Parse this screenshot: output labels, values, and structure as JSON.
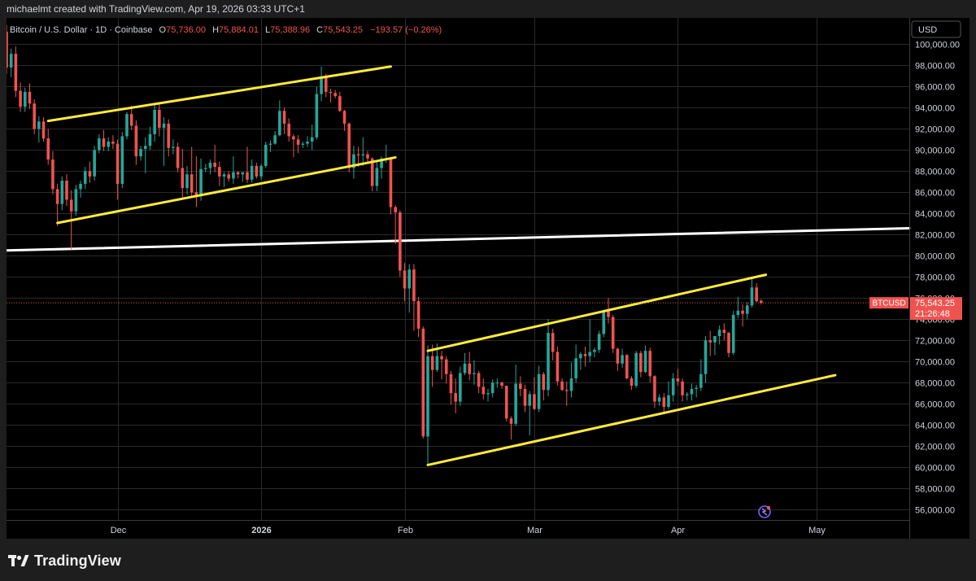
{
  "header": {
    "attribution": "michaelmt created with TradingView.com, Apr 19, 2026 03:33 UTC+1"
  },
  "legend": {
    "symbol_desc": "Bitcoin / U.S. Dollar · 1D · Coinbase",
    "open_label": "O",
    "open": "75,736.00",
    "high_label": "H",
    "high": "75,884.01",
    "low_label": "L",
    "low": "75,388.96",
    "close_label": "C",
    "close": "75,543.25",
    "change": "−193.57 (−0.26%)"
  },
  "price_scale": {
    "currency": "USD",
    "price_tag": {
      "symbol": "BTCUSD",
      "price": "75,543.25",
      "countdown": "21:26:48"
    }
  },
  "footer": {
    "brand": "TradingView"
  },
  "colors": {
    "up": "#26a69a",
    "down": "#ef5350",
    "trendline": "#ffeb3b",
    "support": "#ffffff",
    "grid": "#2a2a2a",
    "background": "#000000"
  },
  "chart_data": {
    "type": "candlestick",
    "symbol": "BTCUSD",
    "interval": "1D",
    "ylim": [
      55000,
      102500
    ],
    "xlim": [
      "2025-11-07",
      "2026-05-21"
    ],
    "yticks": [
      56000,
      58000,
      60000,
      62000,
      64000,
      66000,
      68000,
      70000,
      72000,
      74000,
      76000,
      78000,
      80000,
      82000,
      84000,
      86000,
      88000,
      90000,
      92000,
      94000,
      96000,
      98000,
      100000
    ],
    "ytick_labels": [
      "56,000.00",
      "58,000.00",
      "60,000.00",
      "62,000.00",
      "64,000.00",
      "66,000.00",
      "68,000.00",
      "70,000.00",
      "72,000.00",
      "74,000.00",
      "76,000.00",
      "78,000.00",
      "80,000.00",
      "82,000.00",
      "84,000.00",
      "86,000.00",
      "88,000.00",
      "90,000.00",
      "92,000.00",
      "94,000.00",
      "96,000.00",
      "98,000.00",
      "100,000.00"
    ],
    "xticks": [
      {
        "date": "2025-12-01",
        "label": "Dec",
        "bold": false
      },
      {
        "date": "2026-01-01",
        "label": "2026",
        "bold": true
      },
      {
        "date": "2026-02-01",
        "label": "Feb",
        "bold": false
      },
      {
        "date": "2026-03-01",
        "label": "Mar",
        "bold": false
      },
      {
        "date": "2026-04-01",
        "label": "Apr",
        "bold": false
      },
      {
        "date": "2026-05-01",
        "label": "May",
        "bold": false
      }
    ],
    "last_price": 75543.25,
    "candles": [
      [
        "2025-11-06",
        103500,
        104200,
        101000,
        101200
      ],
      [
        "2025-11-07",
        101200,
        101800,
        97200,
        97800
      ],
      [
        "2025-11-08",
        97800,
        99600,
        96900,
        99100
      ],
      [
        "2025-11-09",
        99100,
        99800,
        95000,
        95600
      ],
      [
        "2025-11-10",
        95600,
        96400,
        93600,
        94100
      ],
      [
        "2025-11-11",
        94100,
        95900,
        93600,
        95500
      ],
      [
        "2025-11-12",
        95500,
        96300,
        93900,
        94400
      ],
      [
        "2025-11-13",
        94400,
        94800,
        91500,
        92000
      ],
      [
        "2025-11-14",
        92000,
        93200,
        90700,
        92700
      ],
      [
        "2025-11-15",
        92700,
        93100,
        90800,
        91100
      ],
      [
        "2025-11-16",
        91100,
        92000,
        88600,
        89100
      ],
      [
        "2025-11-17",
        89100,
        89900,
        85800,
        86300
      ],
      [
        "2025-11-18",
        86300,
        86800,
        82800,
        84900
      ],
      [
        "2025-11-19",
        84900,
        87500,
        84300,
        87100
      ],
      [
        "2025-11-20",
        87100,
        87700,
        84700,
        85300
      ],
      [
        "2025-11-21",
        85300,
        86200,
        80600,
        84200
      ],
      [
        "2025-11-22",
        84200,
        86700,
        83800,
        86300
      ],
      [
        "2025-11-23",
        86300,
        87100,
        85500,
        86800
      ],
      [
        "2025-11-24",
        86800,
        88400,
        86300,
        88000
      ],
      [
        "2025-11-25",
        88000,
        88900,
        86900,
        87500
      ],
      [
        "2025-11-26",
        87500,
        90400,
        87100,
        90000
      ],
      [
        "2025-11-27",
        90000,
        91500,
        89700,
        91100
      ],
      [
        "2025-11-28",
        91100,
        91900,
        89900,
        90300
      ],
      [
        "2025-11-29",
        90300,
        91200,
        89900,
        90800
      ],
      [
        "2025-11-30",
        90800,
        91400,
        90100,
        90600
      ],
      [
        "2025-12-01",
        90600,
        91000,
        85300,
        86800
      ],
      [
        "2025-12-02",
        86800,
        91700,
        86400,
        91300
      ],
      [
        "2025-12-03",
        91300,
        93600,
        91000,
        93400
      ],
      [
        "2025-12-04",
        93400,
        94200,
        91900,
        92300
      ],
      [
        "2025-12-05",
        92300,
        92800,
        88600,
        89400
      ],
      [
        "2025-12-06",
        89400,
        90400,
        89000,
        90100
      ],
      [
        "2025-12-07",
        90100,
        91200,
        87800,
        90400
      ],
      [
        "2025-12-08",
        90400,
        92200,
        90000,
        91500
      ],
      [
        "2025-12-09",
        91500,
        94300,
        90800,
        93800
      ],
      [
        "2025-12-10",
        93800,
        94500,
        91300,
        92100
      ],
      [
        "2025-12-11",
        92100,
        93100,
        88500,
        92500
      ],
      [
        "2025-12-12",
        92500,
        92900,
        89400,
        90200
      ],
      [
        "2025-12-13",
        90200,
        91000,
        89600,
        90300
      ],
      [
        "2025-12-14",
        90300,
        90700,
        87900,
        88300
      ],
      [
        "2025-12-15",
        88300,
        90100,
        85300,
        86400
      ],
      [
        "2025-12-16",
        86400,
        88500,
        85800,
        87700
      ],
      [
        "2025-12-17",
        87700,
        90300,
        85500,
        86000
      ],
      [
        "2025-12-18",
        86000,
        89400,
        84600,
        85700
      ],
      [
        "2025-12-19",
        85700,
        89200,
        85200,
        88200
      ],
      [
        "2025-12-20",
        88200,
        88700,
        87900,
        88300
      ],
      [
        "2025-12-21",
        88300,
        89100,
        87700,
        88800
      ],
      [
        "2025-12-22",
        88800,
        90500,
        87900,
        88400
      ],
      [
        "2025-12-23",
        88400,
        88900,
        86600,
        87500
      ],
      [
        "2025-12-24",
        87500,
        87900,
        86500,
        87700
      ],
      [
        "2025-12-25",
        87700,
        88000,
        87000,
        87300
      ],
      [
        "2025-12-26",
        87300,
        89400,
        86800,
        87900
      ],
      [
        "2025-12-27",
        87900,
        88000,
        87300,
        87700
      ],
      [
        "2025-12-28",
        87700,
        87900,
        87000,
        87900
      ],
      [
        "2025-12-29",
        87900,
        90300,
        86900,
        87200
      ],
      [
        "2025-12-30",
        87200,
        89100,
        86900,
        88500
      ],
      [
        "2025-12-31",
        88500,
        88800,
        87300,
        87500
      ],
      [
        "2026-01-01",
        87500,
        88700,
        87200,
        88500
      ],
      [
        "2026-01-02",
        88500,
        90800,
        88300,
        90500
      ],
      [
        "2026-01-03",
        90500,
        90900,
        89800,
        90600
      ],
      [
        "2026-01-04",
        90600,
        91800,
        90500,
        91400
      ],
      [
        "2026-01-05",
        91400,
        94700,
        91300,
        93700
      ],
      [
        "2026-01-06",
        93700,
        94000,
        91500,
        92500
      ],
      [
        "2026-01-07",
        92500,
        93000,
        90800,
        91300
      ],
      [
        "2026-01-08",
        91300,
        91500,
        89300,
        91000
      ],
      [
        "2026-01-09",
        91000,
        91400,
        89700,
        90500
      ],
      [
        "2026-01-10",
        90500,
        90800,
        90200,
        90600
      ],
      [
        "2026-01-11",
        90600,
        91300,
        90300,
        90800
      ],
      [
        "2026-01-12",
        90800,
        92400,
        90000,
        91200
      ],
      [
        "2026-01-13",
        91200,
        96000,
        91000,
        95300
      ],
      [
        "2026-01-14",
        95300,
        97900,
        94600,
        96900
      ],
      [
        "2026-01-15",
        96900,
        97200,
        95000,
        95500
      ],
      [
        "2026-01-16",
        95500,
        95800,
        94500,
        95400
      ],
      [
        "2026-01-17",
        95400,
        95700,
        94900,
        95100
      ],
      [
        "2026-01-18",
        95100,
        95500,
        93600,
        93700
      ],
      [
        "2026-01-19",
        93700,
        93800,
        91800,
        92500
      ],
      [
        "2026-01-20",
        92500,
        92600,
        87900,
        88300
      ],
      [
        "2026-01-21",
        88300,
        90400,
        87300,
        89600
      ],
      [
        "2026-01-22",
        89600,
        90300,
        88400,
        89500
      ],
      [
        "2026-01-23",
        89500,
        91200,
        88500,
        89600
      ],
      [
        "2026-01-24",
        89600,
        89900,
        88900,
        89200
      ],
      [
        "2026-01-25",
        89200,
        89300,
        86100,
        86600
      ],
      [
        "2026-01-26",
        86600,
        88900,
        86100,
        88300
      ],
      [
        "2026-01-27",
        88300,
        89400,
        87300,
        89200
      ],
      [
        "2026-01-28",
        89200,
        90500,
        88800,
        89200
      ],
      [
        "2026-01-29",
        89200,
        89300,
        83900,
        84600
      ],
      [
        "2026-01-30",
        84600,
        84800,
        81100,
        84100
      ],
      [
        "2026-01-31",
        84100,
        84300,
        78000,
        78600
      ],
      [
        "2026-02-01",
        78600,
        79300,
        75700,
        76900
      ],
      [
        "2026-02-02",
        76900,
        79200,
        74600,
        78700
      ],
      [
        "2026-02-03",
        78700,
        79200,
        72900,
        75700
      ],
      [
        "2026-02-04",
        75700,
        76100,
        72300,
        73100
      ],
      [
        "2026-02-05",
        73100,
        73300,
        62700,
        62900
      ],
      [
        "2026-02-06",
        62900,
        71500,
        60100,
        70500
      ],
      [
        "2026-02-07",
        70500,
        71600,
        67600,
        69200
      ],
      [
        "2026-02-08",
        69200,
        71700,
        69000,
        70500
      ],
      [
        "2026-02-09",
        70500,
        71000,
        68300,
        70200
      ],
      [
        "2026-02-10",
        70200,
        70500,
        67900,
        68800
      ],
      [
        "2026-02-11",
        68800,
        69100,
        65900,
        67000
      ],
      [
        "2026-02-12",
        67000,
        68400,
        65100,
        66200
      ],
      [
        "2026-02-13",
        66200,
        69500,
        65800,
        68900
      ],
      [
        "2026-02-14",
        68900,
        70800,
        68700,
        69800
      ],
      [
        "2026-02-15",
        69800,
        70900,
        68200,
        68800
      ],
      [
        "2026-02-16",
        68800,
        70100,
        67800,
        68900
      ],
      [
        "2026-02-17",
        68900,
        69100,
        67000,
        67600
      ],
      [
        "2026-02-18",
        67600,
        68400,
        66400,
        66900
      ],
      [
        "2026-02-19",
        66900,
        67400,
        66200,
        67000
      ],
      [
        "2026-02-20",
        67000,
        68300,
        66600,
        68000
      ],
      [
        "2026-02-21",
        68000,
        68400,
        67500,
        68000
      ],
      [
        "2026-02-22",
        68000,
        68100,
        67400,
        67700
      ],
      [
        "2026-02-23",
        67700,
        67700,
        64300,
        64600
      ],
      [
        "2026-02-24",
        64600,
        64800,
        62600,
        64100
      ],
      [
        "2026-02-25",
        64100,
        69700,
        63900,
        67900
      ],
      [
        "2026-02-26",
        67900,
        68600,
        66700,
        67400
      ],
      [
        "2026-02-27",
        67400,
        67800,
        65200,
        65800
      ],
      [
        "2026-02-28",
        65800,
        67200,
        63000,
        66900
      ],
      [
        "2026-03-01",
        66900,
        68500,
        65400,
        65500
      ],
      [
        "2026-03-02",
        65500,
        69600,
        65200,
        68800
      ],
      [
        "2026-03-03",
        68800,
        69000,
        66300,
        67300
      ],
      [
        "2026-03-04",
        67300,
        74000,
        66700,
        72700
      ],
      [
        "2026-03-05",
        72700,
        73100,
        70100,
        70900
      ],
      [
        "2026-03-06",
        70900,
        71400,
        67700,
        68100
      ],
      [
        "2026-03-07",
        68100,
        68400,
        67200,
        67300
      ],
      [
        "2026-03-08",
        67300,
        68100,
        65800,
        67200
      ],
      [
        "2026-03-09",
        67200,
        69900,
        66600,
        68400
      ],
      [
        "2026-03-10",
        68400,
        71600,
        68000,
        70300
      ],
      [
        "2026-03-11",
        70300,
        70900,
        69200,
        70700
      ],
      [
        "2026-03-12",
        70700,
        71400,
        69500,
        70500
      ],
      [
        "2026-03-13",
        70500,
        74000,
        69900,
        70900
      ],
      [
        "2026-03-14",
        70900,
        71300,
        70400,
        71100
      ],
      [
        "2026-03-15",
        71100,
        72900,
        70800,
        72600
      ],
      [
        "2026-03-16",
        72600,
        74900,
        72300,
        74800
      ],
      [
        "2026-03-17",
        74800,
        76000,
        73600,
        74200
      ],
      [
        "2026-03-18",
        74200,
        74400,
        70800,
        71200
      ],
      [
        "2026-03-19",
        71200,
        71300,
        69100,
        69800
      ],
      [
        "2026-03-20",
        69800,
        71200,
        69400,
        70600
      ],
      [
        "2026-03-21",
        70600,
        70700,
        68300,
        68400
      ],
      [
        "2026-03-22",
        68400,
        68600,
        67300,
        67700
      ],
      [
        "2026-03-23",
        67700,
        71000,
        67500,
        70800
      ],
      [
        "2026-03-24",
        70800,
        71000,
        68500,
        69000
      ],
      [
        "2026-03-25",
        69000,
        71500,
        68900,
        71000
      ],
      [
        "2026-03-26",
        71000,
        71300,
        68000,
        68600
      ],
      [
        "2026-03-27",
        68600,
        68700,
        65600,
        66200
      ],
      [
        "2026-03-28",
        66200,
        66900,
        65800,
        66600
      ],
      [
        "2026-03-29",
        66600,
        67000,
        65000,
        65700
      ],
      [
        "2026-03-30",
        65700,
        68100,
        65500,
        66800
      ],
      [
        "2026-03-31",
        66800,
        68900,
        66200,
        68400
      ],
      [
        "2026-04-01",
        68400,
        69300,
        67700,
        68100
      ],
      [
        "2026-04-02",
        68100,
        68400,
        66200,
        66800
      ],
      [
        "2026-04-03",
        66800,
        67100,
        66300,
        66900
      ],
      [
        "2026-04-04",
        66900,
        67900,
        66300,
        67400
      ],
      [
        "2026-04-05",
        67400,
        67800,
        66600,
        67500
      ],
      [
        "2026-04-06",
        67500,
        70200,
        67200,
        68800
      ],
      [
        "2026-04-07",
        68800,
        72400,
        68000,
        72000
      ],
      [
        "2026-04-08",
        72000,
        72900,
        70500,
        71800
      ],
      [
        "2026-04-09",
        71800,
        72400,
        70600,
        72400
      ],
      [
        "2026-04-10",
        72400,
        73400,
        71600,
        73000
      ],
      [
        "2026-04-11",
        73000,
        73600,
        72000,
        72700
      ],
      [
        "2026-04-12",
        72700,
        72800,
        70400,
        70800
      ],
      [
        "2026-04-13",
        70800,
        74800,
        70600,
        74400
      ],
      [
        "2026-04-14",
        74400,
        76100,
        74100,
        74800
      ],
      [
        "2026-04-15",
        74800,
        75400,
        73300,
        74500
      ],
      [
        "2026-04-16",
        74500,
        75600,
        74000,
        75300
      ],
      [
        "2026-04-17",
        75300,
        77900,
        75100,
        77000
      ],
      [
        "2026-04-18",
        77000,
        77400,
        75600,
        75700
      ],
      [
        "2026-04-19",
        75736,
        75884.01,
        75388.96,
        75543.25
      ]
    ],
    "drawings": [
      {
        "kind": "trendline",
        "color": "yellow",
        "from": [
          "2025-11-16",
          92750
        ],
        "to": [
          "2026-01-29",
          97900
        ]
      },
      {
        "kind": "trendline",
        "color": "yellow",
        "from": [
          "2025-11-18",
          83100
        ],
        "to": [
          "2026-01-30",
          89300
        ]
      },
      {
        "kind": "trendline",
        "color": "yellow",
        "from": [
          "2026-02-06",
          71000
        ],
        "to": [
          "2026-04-20",
          78200
        ]
      },
      {
        "kind": "trendline",
        "color": "yellow",
        "from": [
          "2026-02-06",
          60200
        ],
        "to": [
          "2026-05-05",
          68700
        ]
      },
      {
        "kind": "horizontal_ray",
        "color": "white",
        "from": [
          "2025-11-07",
          80500
        ],
        "to": [
          "2026-05-21",
          82600
        ]
      }
    ]
  }
}
